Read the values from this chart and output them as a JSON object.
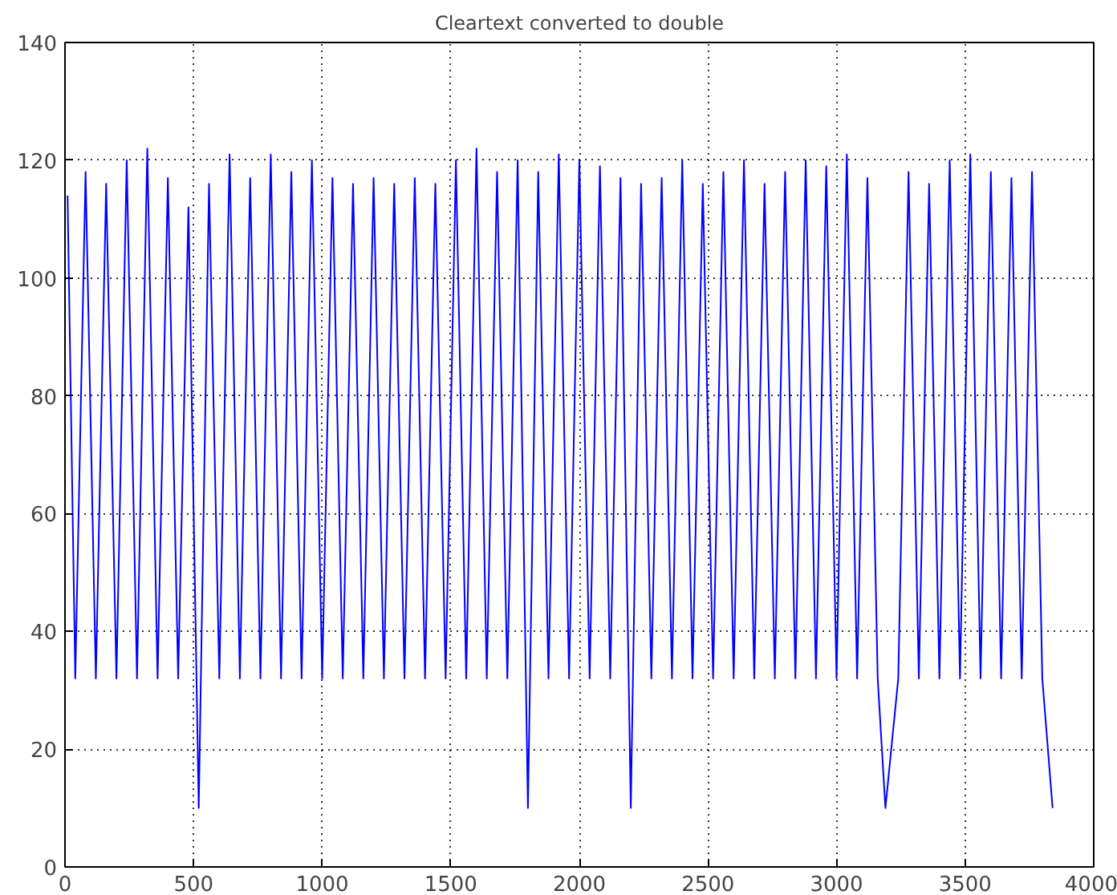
{
  "chart_data": {
    "type": "line",
    "title": "Cleartext converted to double",
    "x": [
      10,
      40,
      80,
      120,
      160,
      200,
      240,
      280,
      320,
      360,
      400,
      440,
      480,
      520,
      560,
      600,
      640,
      680,
      720,
      760,
      800,
      840,
      880,
      920,
      960,
      1000,
      1040,
      1080,
      1120,
      1160,
      1200,
      1240,
      1280,
      1320,
      1360,
      1400,
      1440,
      1480,
      1520,
      1560,
      1600,
      1640,
      1680,
      1720,
      1760,
      1800,
      1840,
      1880,
      1920,
      1960,
      2000,
      2040,
      2080,
      2120,
      2160,
      2200,
      2240,
      2280,
      2320,
      2360,
      2400,
      2440,
      2480,
      2520,
      2560,
      2600,
      2640,
      2680,
      2720,
      2760,
      2800,
      2840,
      2880,
      2920,
      2960,
      3000,
      3040,
      3080,
      3120,
      3160,
      3190,
      3240,
      3280,
      3320,
      3360,
      3400,
      3440,
      3480,
      3520,
      3560,
      3600,
      3640,
      3680,
      3720,
      3760,
      3800,
      3840
    ],
    "series": [
      {
        "color": "#0000ff",
        "values": [
          114,
          32,
          118,
          32,
          116,
          32,
          120,
          32,
          122,
          32,
          117,
          32,
          112,
          10,
          116,
          32,
          121,
          32,
          117,
          32,
          121,
          32,
          118,
          32,
          120,
          32,
          117,
          32,
          116,
          32,
          117,
          32,
          116,
          32,
          117,
          32,
          116,
          32,
          120,
          32,
          122,
          32,
          118,
          32,
          120,
          10,
          118,
          32,
          121,
          32,
          120,
          32,
          119,
          32,
          117,
          10,
          116,
          32,
          117,
          32,
          120,
          32,
          116,
          32,
          118,
          32,
          120,
          32,
          116,
          32,
          118,
          32,
          120,
          32,
          119,
          32,
          121,
          32,
          117,
          32,
          10,
          32,
          118,
          32,
          116,
          32,
          120,
          32,
          121,
          32,
          118,
          32,
          117,
          32,
          118,
          32,
          10
        ]
      }
    ],
    "xlim": [
      0,
      4000
    ],
    "ylim": [
      0,
      140
    ],
    "xticks": [
      0,
      500,
      1000,
      1500,
      2000,
      2500,
      3000,
      3500,
      4000
    ],
    "yticks": [
      0,
      20,
      40,
      60,
      80,
      100,
      120,
      140
    ],
    "grid": true,
    "marker": "none",
    "line_style": "solid"
  }
}
